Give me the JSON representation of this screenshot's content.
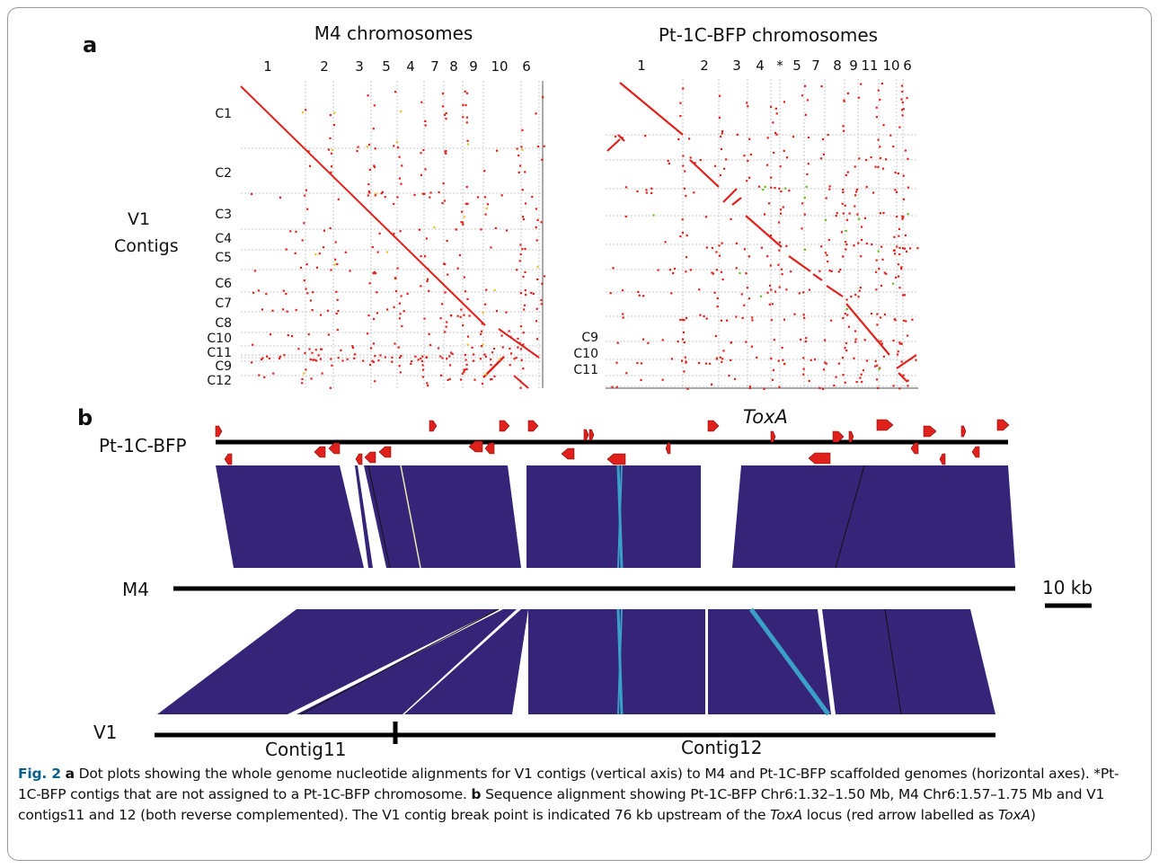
{
  "panel_a": {
    "label": "a",
    "left_plot": {
      "title": "M4 chromosomes",
      "x_labels": [
        "1",
        "2",
        "3",
        "5",
        "4",
        "7",
        "8",
        "9",
        "10",
        "6"
      ],
      "y_labels": [
        "C1",
        "C2",
        "C3",
        "C4",
        "C5",
        "C6",
        "C7",
        "C8",
        "C10",
        "C11",
        "C9",
        "C12"
      ],
      "axis_label_line1": "V1",
      "axis_label_line2": "Contigs"
    },
    "right_plot": {
      "title": "Pt-1C-BFP chromosomes",
      "x_labels": [
        "1",
        "2",
        "3",
        "4",
        "*",
        "5",
        "7",
        "8",
        "9",
        "11",
        "10",
        "6"
      ],
      "y_labels": [
        "C9",
        "C10",
        "C11"
      ]
    }
  },
  "panel_b": {
    "label": "b",
    "track_top": "Pt-1C-BFP",
    "track_mid": "M4",
    "track_bottom": "V1",
    "gene_label": "ToxA",
    "scale_label": "10 kb",
    "contig_left": "Contig11",
    "contig_right": "Contig12"
  },
  "caption": {
    "fig_number": "Fig. 2",
    "part_a_label": "a",
    "part_a_text": "Dot plots showing the whole genome nucleotide alignments for V1 contigs (vertical axis) to M4 and Pt-1C-BFP scaffolded genomes (horizontal axes). *Pt-1C-BFP contigs that are not assigned to a Pt-1C-BFP chromosome.",
    "part_b_label": "b",
    "part_b_text": "Sequence alignment showing Pt-1C-BFP Chr6:1.32–1.50 Mb, M4 Chr6:1.57–1.75 Mb and V1 contigs11 and 12 (both reverse complemented). The V1 contig break point is indicated 76 kb upstream of the",
    "part_b_gene": "ToxA",
    "part_b_text2": "locus (red arrow labelled as",
    "part_b_gene2": "ToxA",
    "part_b_text3": ")"
  },
  "colors": {
    "dot": "#e0201b",
    "alignment": "#352478",
    "inverted": "#3aa0c8",
    "grid": "#c8c8c8",
    "accent": "#0b5f8c"
  }
}
